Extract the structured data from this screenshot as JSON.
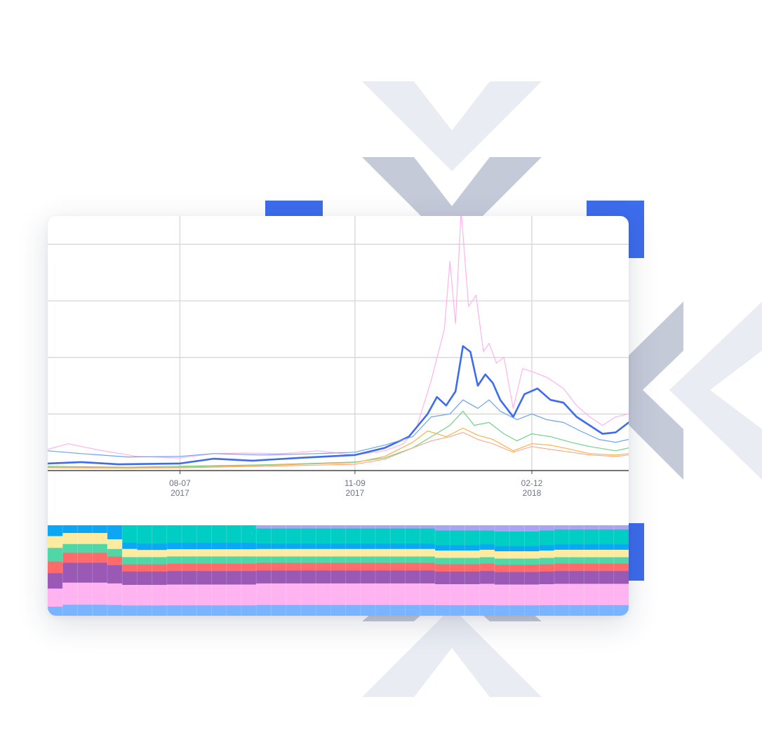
{
  "colors": {
    "accent_blue": "#3d6cec",
    "chevron_light": "#e9ecf3",
    "chevron_dark": "#c4cad8",
    "grid": "#d6d6d6",
    "axis": "#222222"
  },
  "chart_data": [
    {
      "type": "line",
      "title": "",
      "xlabel": "",
      "ylabel": "",
      "x_start": "2017-05-28",
      "x_end": "2018-04-05",
      "xlim": [
        "2017-05-28",
        "2018-04-05"
      ],
      "ylim": [
        0,
        9
      ],
      "grid": true,
      "legend": "none",
      "x_ticks": [
        {
          "date": "2017-08-07",
          "label": "08-07",
          "year": "2017"
        },
        {
          "date": "2017-11-09",
          "label": "11-09",
          "year": "2017"
        },
        {
          "date": "2018-02-12",
          "label": "02-12",
          "year": "2018"
        }
      ],
      "y_grid_values": [
        2,
        4,
        6,
        8
      ],
      "series": [
        {
          "color": "#ffb3ec",
          "width": 1.2,
          "points": [
            [
              "2017-05-28",
              0.75
            ],
            [
              "2017-06-08",
              0.95
            ],
            [
              "2017-06-25",
              0.72
            ],
            [
              "2017-07-15",
              0.5
            ],
            [
              "2017-08-07",
              0.45
            ],
            [
              "2017-08-25",
              0.6
            ],
            [
              "2017-09-10",
              0.62
            ],
            [
              "2017-10-01",
              0.6
            ],
            [
              "2017-10-20",
              0.7
            ],
            [
              "2017-11-09",
              0.55
            ],
            [
              "2017-11-25",
              0.7
            ],
            [
              "2017-12-05",
              0.95
            ],
            [
              "2017-12-12",
              1.5
            ],
            [
              "2017-12-20",
              3.2
            ],
            [
              "2017-12-27",
              5.0
            ],
            [
              "2017-12-30",
              7.4
            ],
            [
              "2018-01-02",
              5.2
            ],
            [
              "2018-01-05",
              9.2
            ],
            [
              "2018-01-09",
              5.8
            ],
            [
              "2018-01-13",
              6.2
            ],
            [
              "2018-01-17",
              4.2
            ],
            [
              "2018-01-20",
              4.5
            ],
            [
              "2018-01-24",
              3.8
            ],
            [
              "2018-01-28",
              4.0
            ],
            [
              "2018-02-02",
              2.2
            ],
            [
              "2018-02-07",
              3.6
            ],
            [
              "2018-02-12",
              3.5
            ],
            [
              "2018-02-20",
              3.3
            ],
            [
              "2018-03-01",
              2.9
            ],
            [
              "2018-03-08",
              2.3
            ],
            [
              "2018-03-15",
              1.9
            ],
            [
              "2018-03-22",
              1.6
            ],
            [
              "2018-03-29",
              1.9
            ],
            [
              "2018-04-05",
              2.0
            ]
          ]
        },
        {
          "color": "#3d6cec",
          "width": 2.6,
          "points": [
            [
              "2017-05-28",
              0.25
            ],
            [
              "2017-06-15",
              0.3
            ],
            [
              "2017-07-05",
              0.22
            ],
            [
              "2017-08-07",
              0.25
            ],
            [
              "2017-08-25",
              0.42
            ],
            [
              "2017-09-15",
              0.35
            ],
            [
              "2017-10-10",
              0.45
            ],
            [
              "2017-11-09",
              0.55
            ],
            [
              "2017-11-25",
              0.8
            ],
            [
              "2017-12-08",
              1.2
            ],
            [
              "2017-12-18",
              2.0
            ],
            [
              "2017-12-23",
              2.6
            ],
            [
              "2017-12-28",
              2.3
            ],
            [
              "2018-01-02",
              2.8
            ],
            [
              "2018-01-06",
              4.4
            ],
            [
              "2018-01-10",
              4.2
            ],
            [
              "2018-01-14",
              3.0
            ],
            [
              "2018-01-18",
              3.4
            ],
            [
              "2018-01-22",
              3.1
            ],
            [
              "2018-01-26",
              2.5
            ],
            [
              "2018-02-02",
              1.9
            ],
            [
              "2018-02-08",
              2.7
            ],
            [
              "2018-02-15",
              2.9
            ],
            [
              "2018-02-22",
              2.5
            ],
            [
              "2018-03-01",
              2.4
            ],
            [
              "2018-03-08",
              1.9
            ],
            [
              "2018-03-15",
              1.6
            ],
            [
              "2018-03-22",
              1.3
            ],
            [
              "2018-03-29",
              1.35
            ],
            [
              "2018-04-05",
              1.7
            ]
          ]
        },
        {
          "color": "#6aa3f0",
          "width": 1.2,
          "points": [
            [
              "2017-05-28",
              0.7
            ],
            [
              "2017-06-15",
              0.6
            ],
            [
              "2017-07-10",
              0.48
            ],
            [
              "2017-08-07",
              0.5
            ],
            [
              "2017-08-25",
              0.6
            ],
            [
              "2017-09-20",
              0.55
            ],
            [
              "2017-10-20",
              0.6
            ],
            [
              "2017-11-09",
              0.65
            ],
            [
              "2017-11-25",
              0.9
            ],
            [
              "2017-12-10",
              1.2
            ],
            [
              "2017-12-20",
              1.9
            ],
            [
              "2017-12-30",
              2.0
            ],
            [
              "2018-01-06",
              2.5
            ],
            [
              "2018-01-14",
              2.2
            ],
            [
              "2018-01-20",
              2.5
            ],
            [
              "2018-01-26",
              2.1
            ],
            [
              "2018-02-04",
              1.8
            ],
            [
              "2018-02-12",
              2.0
            ],
            [
              "2018-02-20",
              1.8
            ],
            [
              "2018-03-01",
              1.7
            ],
            [
              "2018-03-10",
              1.4
            ],
            [
              "2018-03-20",
              1.1
            ],
            [
              "2018-03-29",
              1.0
            ],
            [
              "2018-04-05",
              1.1
            ]
          ]
        },
        {
          "color": "#6fd38a",
          "width": 1.2,
          "points": [
            [
              "2017-05-28",
              0.15
            ],
            [
              "2017-07-10",
              0.12
            ],
            [
              "2017-08-07",
              0.15
            ],
            [
              "2017-09-20",
              0.2
            ],
            [
              "2017-11-09",
              0.3
            ],
            [
              "2017-11-25",
              0.45
            ],
            [
              "2017-12-10",
              0.8
            ],
            [
              "2017-12-20",
              1.2
            ],
            [
              "2017-12-30",
              1.6
            ],
            [
              "2018-01-06",
              2.1
            ],
            [
              "2018-01-12",
              1.6
            ],
            [
              "2018-01-20",
              1.7
            ],
            [
              "2018-01-28",
              1.3
            ],
            [
              "2018-02-04",
              1.05
            ],
            [
              "2018-02-12",
              1.3
            ],
            [
              "2018-02-22",
              1.2
            ],
            [
              "2018-03-05",
              1.0
            ],
            [
              "2018-03-15",
              0.85
            ],
            [
              "2018-03-29",
              0.7
            ],
            [
              "2018-04-05",
              0.8
            ]
          ]
        },
        {
          "color": "#ffb04a",
          "width": 1.2,
          "points": [
            [
              "2017-05-28",
              0.12
            ],
            [
              "2017-07-10",
              0.1
            ],
            [
              "2017-08-07",
              0.12
            ],
            [
              "2017-09-20",
              0.18
            ],
            [
              "2017-11-09",
              0.28
            ],
            [
              "2017-11-25",
              0.5
            ],
            [
              "2017-12-10",
              1.0
            ],
            [
              "2017-12-18",
              1.4
            ],
            [
              "2017-12-28",
              1.2
            ],
            [
              "2018-01-06",
              1.5
            ],
            [
              "2018-01-14",
              1.25
            ],
            [
              "2018-01-22",
              1.1
            ],
            [
              "2018-02-02",
              0.7
            ],
            [
              "2018-02-12",
              0.95
            ],
            [
              "2018-02-22",
              0.9
            ],
            [
              "2018-03-05",
              0.75
            ],
            [
              "2018-03-15",
              0.6
            ],
            [
              "2018-03-29",
              0.55
            ],
            [
              "2018-04-05",
              0.6
            ]
          ]
        },
        {
          "color": "#ff9d7a",
          "width": 1.0,
          "points": [
            [
              "2017-05-28",
              0.1
            ],
            [
              "2017-07-10",
              0.08
            ],
            [
              "2017-08-07",
              0.1
            ],
            [
              "2017-09-20",
              0.15
            ],
            [
              "2017-11-09",
              0.22
            ],
            [
              "2017-11-25",
              0.4
            ],
            [
              "2017-12-10",
              0.8
            ],
            [
              "2017-12-20",
              1.05
            ],
            [
              "2017-12-30",
              1.2
            ],
            [
              "2018-01-06",
              1.35
            ],
            [
              "2018-01-14",
              1.1
            ],
            [
              "2018-01-22",
              0.95
            ],
            [
              "2018-02-02",
              0.65
            ],
            [
              "2018-02-12",
              0.85
            ],
            [
              "2018-02-22",
              0.75
            ],
            [
              "2018-03-05",
              0.65
            ],
            [
              "2018-03-15",
              0.55
            ],
            [
              "2018-03-29",
              0.5
            ],
            [
              "2018-04-05",
              0.55
            ]
          ]
        }
      ]
    },
    {
      "type": "area",
      "title": "",
      "stacked": "100%",
      "order": "top-to-bottom",
      "legend": "none",
      "columns": 39,
      "series": [
        {
          "color": "#a9a4f2",
          "values": [
            0,
            0,
            0,
            0,
            0,
            0,
            0,
            0,
            0,
            0,
            0,
            0,
            0,
            0,
            3,
            3,
            3,
            3,
            3,
            3,
            3,
            3,
            3,
            3,
            3,
            3,
            5,
            5,
            5,
            5,
            6,
            6,
            6,
            5,
            4,
            4,
            4,
            4,
            4
          ]
        },
        {
          "color": "#00cdc3",
          "values": [
            0,
            0,
            0,
            0,
            0,
            17,
            18,
            18,
            17,
            17,
            17,
            17,
            17,
            17,
            14,
            14,
            14,
            14,
            14,
            14,
            14,
            14,
            14,
            14,
            14,
            14,
            14,
            14,
            14,
            13,
            14,
            14,
            14,
            14,
            14,
            14,
            14,
            14,
            14
          ]
        },
        {
          "color": "#0ba7f5",
          "values": [
            12,
            7,
            7,
            7,
            13,
            6,
            6,
            6,
            6,
            6,
            6,
            6,
            6,
            6,
            5,
            5,
            5,
            5,
            5,
            5,
            5,
            5,
            5,
            5,
            5,
            5,
            5,
            5,
            5,
            5,
            5,
            5,
            5,
            5,
            5,
            5,
            5,
            5,
            5
          ]
        },
        {
          "color": "#ffeba0",
          "values": [
            13,
            10,
            10,
            10,
            9,
            8,
            7,
            7,
            7,
            7,
            7,
            7,
            7,
            7,
            7,
            7,
            7,
            7,
            7,
            7,
            7,
            7,
            7,
            7,
            7,
            7,
            7,
            7,
            7,
            7,
            7,
            7,
            7,
            7,
            7,
            7,
            7,
            7,
            7
          ]
        },
        {
          "color": "#4fd7a8",
          "values": [
            15,
            8,
            8,
            8,
            7,
            7,
            7,
            7,
            7,
            7,
            7,
            7,
            7,
            7,
            6,
            6,
            6,
            6,
            6,
            6,
            6,
            6,
            6,
            6,
            6,
            6,
            6,
            6,
            6,
            6,
            6,
            6,
            6,
            6,
            6,
            6,
            6,
            6,
            6
          ]
        },
        {
          "color": "#ff6b6b",
          "values": [
            13,
            9,
            9,
            9,
            8,
            7,
            7,
            7,
            7,
            7,
            7,
            7,
            7,
            7,
            7,
            7,
            7,
            7,
            7,
            7,
            7,
            7,
            7,
            7,
            7,
            7,
            7,
            7,
            7,
            7,
            7,
            7,
            7,
            7,
            7,
            7,
            7,
            7,
            7
          ]
        },
        {
          "color": "#9b59b6",
          "values": [
            17,
            18,
            18,
            18,
            17,
            13,
            13,
            13,
            13,
            13,
            13,
            13,
            13,
            13,
            12,
            12,
            12,
            12,
            12,
            12,
            12,
            12,
            12,
            12,
            12,
            12,
            12,
            12,
            12,
            12,
            12,
            12,
            12,
            12,
            12,
            12,
            12,
            12,
            12
          ]
        },
        {
          "color": "#ffb3f0",
          "values": [
            20,
            20,
            20,
            20,
            20,
            20,
            20,
            20,
            20,
            20,
            20,
            20,
            20,
            20,
            20,
            20,
            20,
            20,
            20,
            20,
            20,
            20,
            20,
            20,
            20,
            20,
            20,
            20,
            20,
            20,
            20,
            20,
            20,
            20,
            20,
            20,
            20,
            20,
            20
          ]
        },
        {
          "color": "#7ab3ff",
          "values": [
            10,
            10,
            10,
            10,
            10,
            10,
            10,
            10,
            10,
            10,
            10,
            10,
            10,
            10,
            10,
            10,
            10,
            10,
            10,
            10,
            10,
            10,
            10,
            10,
            10,
            10,
            10,
            10,
            10,
            10,
            10,
            10,
            10,
            10,
            10,
            10,
            10,
            10,
            10
          ]
        }
      ]
    }
  ]
}
